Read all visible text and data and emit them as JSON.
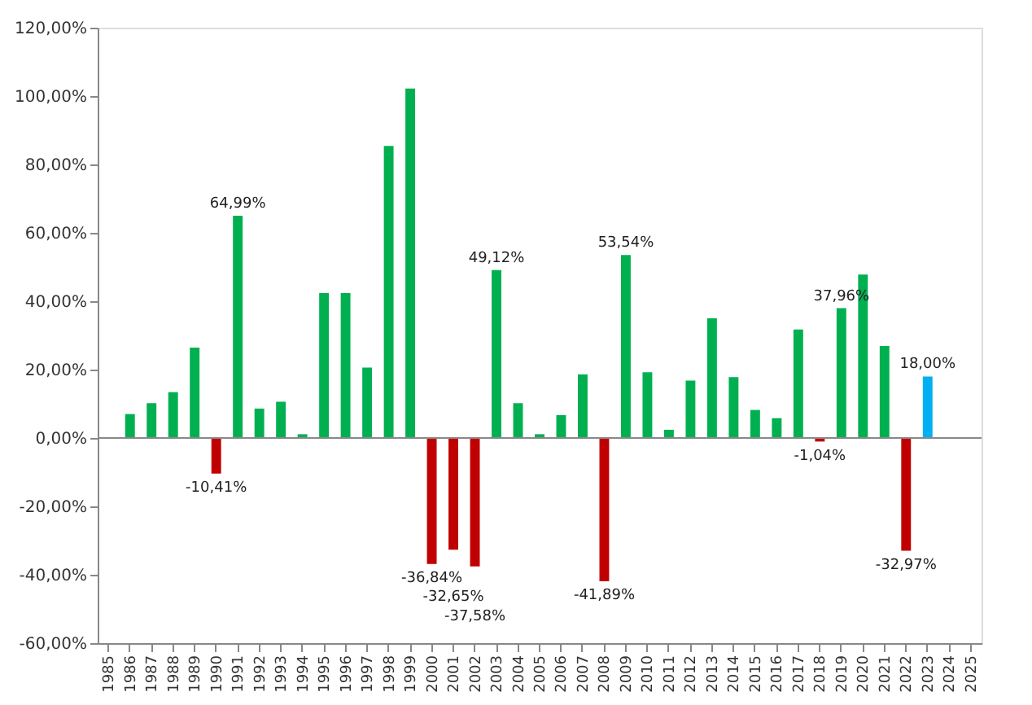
{
  "chart_data": {
    "type": "bar",
    "categories": [
      "1985",
      "1986",
      "1987",
      "1988",
      "1989",
      "1990",
      "1991",
      "1992",
      "1993",
      "1994",
      "1995",
      "1996",
      "1997",
      "1998",
      "1999",
      "2000",
      "2001",
      "2002",
      "2003",
      "2004",
      "2005",
      "2006",
      "2007",
      "2008",
      "2009",
      "2010",
      "2011",
      "2012",
      "2013",
      "2014",
      "2015",
      "2016",
      "2017",
      "2018",
      "2019",
      "2020",
      "2021",
      "2022",
      "2023",
      "2024",
      "2025"
    ],
    "values": [
      null,
      7.0,
      10.2,
      13.4,
      26.4,
      -10.41,
      64.99,
      8.6,
      10.6,
      1.1,
      42.4,
      42.4,
      20.6,
      85.4,
      102.2,
      -36.84,
      -32.65,
      -37.58,
      49.12,
      10.2,
      1.1,
      6.7,
      18.6,
      -41.89,
      53.54,
      19.2,
      2.4,
      16.8,
      35.0,
      17.8,
      8.2,
      5.8,
      31.7,
      -1.04,
      37.96,
      47.8,
      26.9,
      -32.97,
      18.0,
      null,
      null
    ],
    "colors": [
      "#00b050",
      "#00b050",
      "#00b050",
      "#00b050",
      "#00b050",
      "#c00000",
      "#00b050",
      "#00b050",
      "#00b050",
      "#00b050",
      "#00b050",
      "#00b050",
      "#00b050",
      "#00b050",
      "#00b050",
      "#c00000",
      "#c00000",
      "#c00000",
      "#00b050",
      "#00b050",
      "#00b050",
      "#00b050",
      "#00b050",
      "#c00000",
      "#00b050",
      "#00b050",
      "#00b050",
      "#00b050",
      "#00b050",
      "#00b050",
      "#00b050",
      "#00b050",
      "#00b050",
      "#c00000",
      "#00b050",
      "#00b050",
      "#00b050",
      "#c00000",
      "#00b0f0",
      "#00b050",
      "#00b050"
    ],
    "value_labels": [
      null,
      null,
      null,
      null,
      null,
      "-10,41%",
      "64,99%",
      null,
      null,
      null,
      null,
      null,
      null,
      null,
      null,
      "-36,84%",
      "-32,65%",
      "-37,58%",
      "49,12%",
      null,
      null,
      null,
      null,
      "-41,89%",
      "53,54%",
      null,
      null,
      null,
      null,
      null,
      null,
      null,
      null,
      "-1,04%",
      "37,96%",
      null,
      null,
      "-32,97%",
      "18,00%",
      null,
      null
    ],
    "ylim": [
      -60,
      120
    ],
    "yticks": [
      {
        "value": -60,
        "label": "-60,00%"
      },
      {
        "value": -40,
        "label": "-40,00%"
      },
      {
        "value": -20,
        "label": "-20,00%"
      },
      {
        "value": 0,
        "label": "0,00%"
      },
      {
        "value": 20,
        "label": "20,00%"
      },
      {
        "value": 40,
        "label": "40,00%"
      },
      {
        "value": 60,
        "label": "60,00%"
      },
      {
        "value": 80,
        "label": "80,00%"
      },
      {
        "value": 100,
        "label": "100,00%"
      },
      {
        "value": 120,
        "label": "120,00%"
      }
    ],
    "tick_labels": true
  }
}
